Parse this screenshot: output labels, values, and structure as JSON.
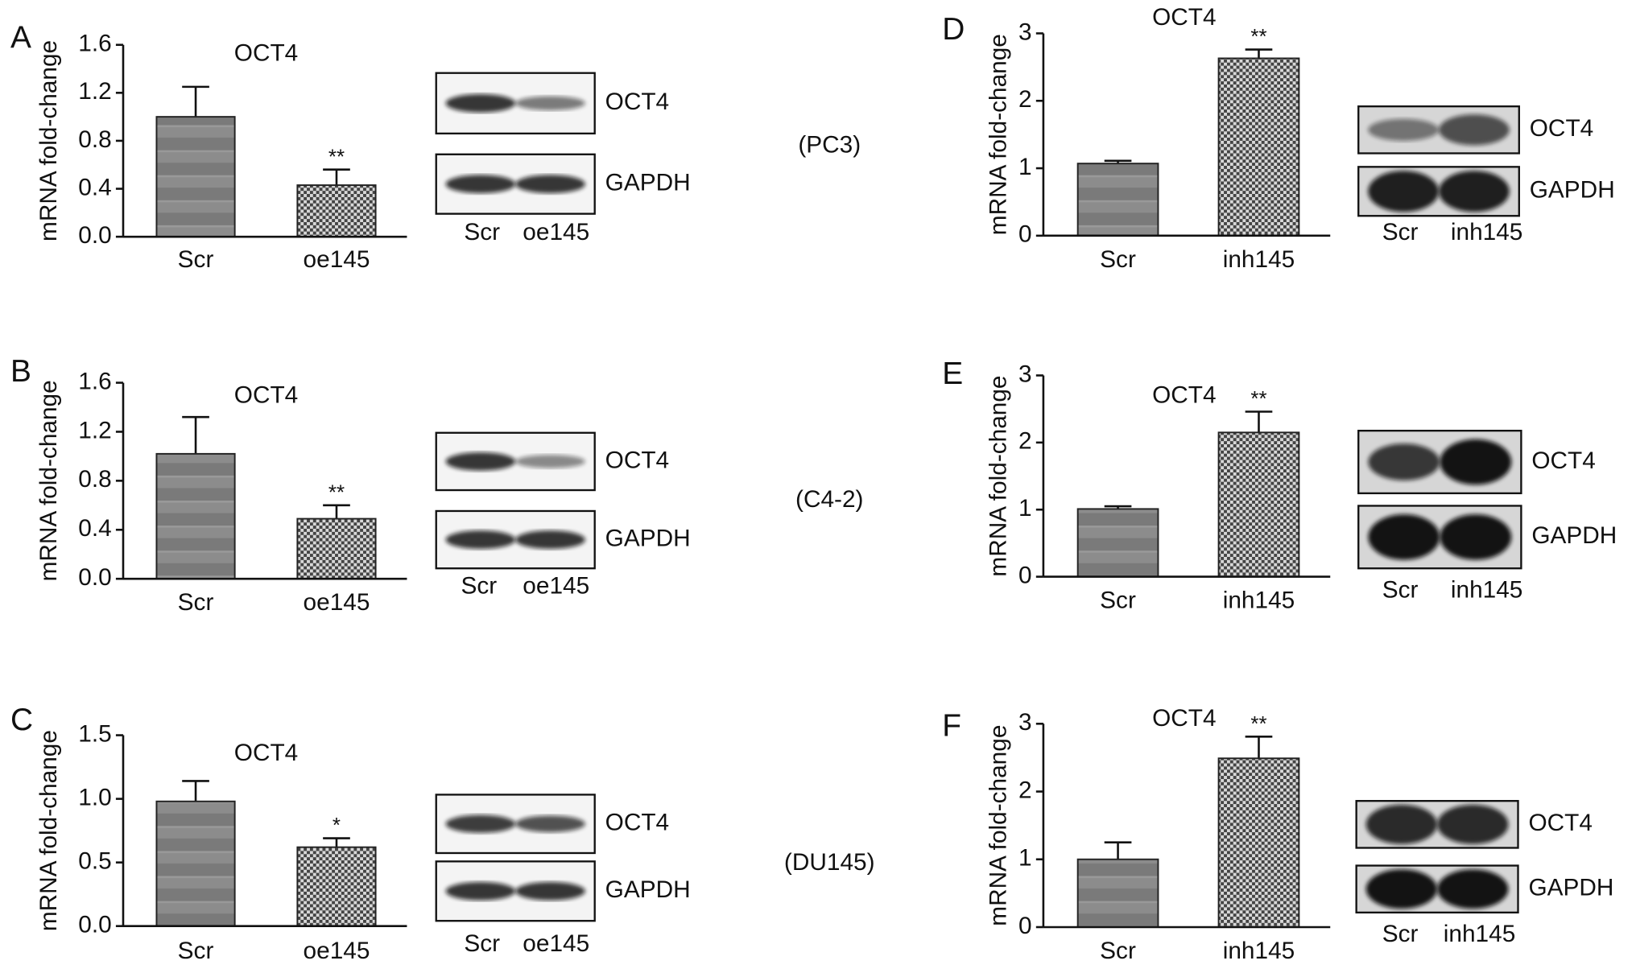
{
  "chart_data": [
    {
      "type": "bar",
      "panel": "A",
      "title": "OCT4",
      "ylabel": "mRNA fold-change",
      "categories": [
        "Scr",
        "oe145"
      ],
      "values": [
        1.0,
        0.43
      ],
      "errors": [
        0.25,
        0.13
      ],
      "significance": [
        null,
        "**"
      ],
      "ylim": [
        0,
        1.6
      ],
      "yticks": [
        {
          "value": 0,
          "label": "0.0"
        },
        0.4,
        0.8,
        1.2,
        1.6
      ],
      "blot_bands": [
        "OCT4",
        "GAPDH"
      ],
      "blot_lanes": [
        "Scr",
        "oe145"
      ],
      "cell_line": "(PC3)"
    },
    {
      "type": "bar",
      "panel": "B",
      "title": "OCT4",
      "ylabel": "mRNA fold-change",
      "categories": [
        "Scr",
        "oe145"
      ],
      "values": [
        1.02,
        0.49
      ],
      "errors": [
        0.3,
        0.11
      ],
      "significance": [
        null,
        "**"
      ],
      "ylim": [
        0,
        1.6
      ],
      "yticks": [
        {
          "value": 0,
          "label": "0.0"
        },
        0.4,
        0.8,
        1.2,
        1.6
      ],
      "blot_bands": [
        "OCT4",
        "GAPDH"
      ],
      "blot_lanes": [
        "Scr",
        "oe145"
      ],
      "cell_line": "(C4-2)"
    },
    {
      "type": "bar",
      "panel": "C",
      "title": "OCT4",
      "ylabel": "mRNA fold-change",
      "categories": [
        "Scr",
        "oe145"
      ],
      "values": [
        0.98,
        0.62
      ],
      "errors": [
        0.16,
        0.07
      ],
      "significance": [
        null,
        "*"
      ],
      "ylim": [
        0,
        1.5
      ],
      "yticks": [
        {
          "value": 0,
          "label": "0.0"
        },
        0.5,
        {
          "value": 1,
          "label": "1.0"
        },
        1.5
      ],
      "blot_bands": [
        "OCT4",
        "GAPDH"
      ],
      "blot_lanes": [
        "Scr",
        "oe145"
      ],
      "cell_line": "(DU145)"
    },
    {
      "type": "bar",
      "panel": "D",
      "title": "OCT4",
      "ylabel": "mRNA fold-change",
      "categories": [
        "Scr",
        "inh145"
      ],
      "values": [
        1.07,
        2.63
      ],
      "errors": [
        0.04,
        0.13
      ],
      "significance": [
        null,
        "**"
      ],
      "ylim": [
        0,
        3
      ],
      "yticks": [
        0,
        1,
        2,
        3
      ],
      "blot_bands": [
        "OCT4",
        "GAPDH"
      ],
      "blot_lanes": [
        "Scr",
        "inh145"
      ]
    },
    {
      "type": "bar",
      "panel": "E",
      "title": "OCT4",
      "ylabel": "mRNA fold-change",
      "categories": [
        "Scr",
        "inh145"
      ],
      "values": [
        1.01,
        2.15
      ],
      "errors": [
        0.04,
        0.31
      ],
      "significance": [
        null,
        "**"
      ],
      "ylim": [
        0,
        3
      ],
      "yticks": [
        0,
        1,
        2,
        3
      ],
      "blot_bands": [
        "OCT4",
        "GAPDH"
      ],
      "blot_lanes": [
        "Scr",
        "inh145"
      ]
    },
    {
      "type": "bar",
      "panel": "F",
      "title": "OCT4",
      "ylabel": "mRNA fold-change",
      "categories": [
        "Scr",
        "inh145"
      ],
      "values": [
        1.0,
        2.49
      ],
      "errors": [
        0.25,
        0.32
      ],
      "significance": [
        null,
        "**"
      ],
      "ylim": [
        0,
        3
      ],
      "yticks": [
        0,
        1,
        2,
        3
      ],
      "blot_bands": [
        "OCT4",
        "GAPDH"
      ],
      "blot_lanes": [
        "Scr",
        "inh145"
      ]
    }
  ]
}
